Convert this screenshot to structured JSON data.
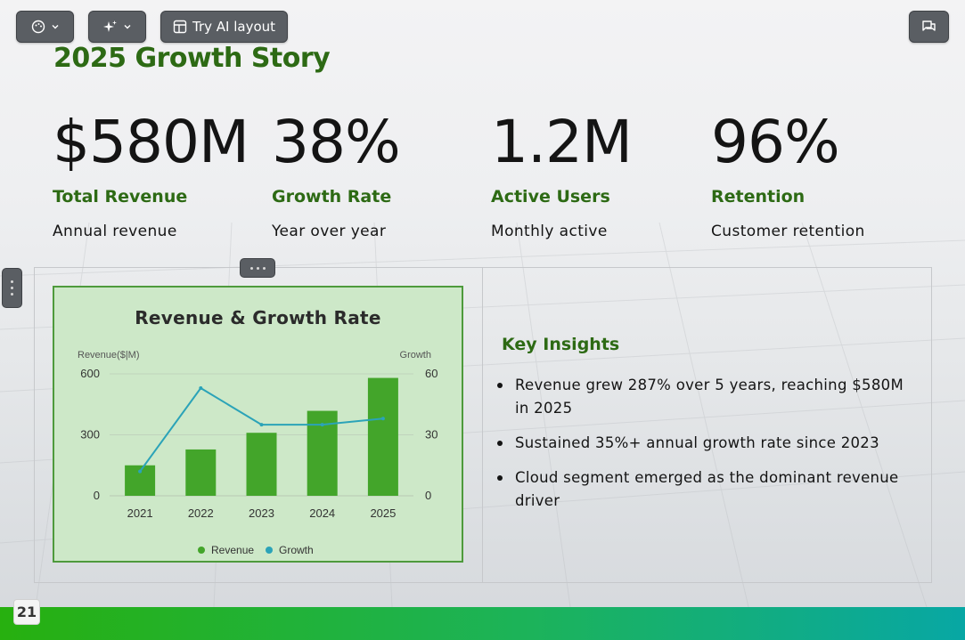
{
  "toolbar": {
    "theme_icon": "palette-icon",
    "ai_icon": "sparkles-icon",
    "try_ai_label": "Try AI layout",
    "comment_icon": "comment-icon"
  },
  "slide": {
    "title": "2025 Growth Story",
    "stats": [
      {
        "value": "$580M",
        "label": "Total Revenue",
        "sub": "Annual revenue"
      },
      {
        "value": "38%",
        "label": "Growth Rate",
        "sub": "Year over year"
      },
      {
        "value": "1.2M",
        "label": "Active Users",
        "sub": "Monthly active"
      },
      {
        "value": "96%",
        "label": "Retention",
        "sub": "Customer retention"
      }
    ],
    "insights_title": "Key Insights",
    "insights": [
      "Revenue grew 287% over 5 years, reaching $580M in 2025",
      "Sustained 35%+ annual growth rate since 2023",
      "Cloud segment emerged as the dominant revenue driver"
    ],
    "page_number": "21"
  },
  "colors": {
    "accent": "#2d6a14",
    "bar": "#43a52a",
    "line": "#2ba3b8",
    "chart_bg": "#cde8c8"
  },
  "chart_data": {
    "type": "bar",
    "title": "Revenue & Growth Rate",
    "categories": [
      "2021",
      "2022",
      "2023",
      "2024",
      "2025"
    ],
    "series": [
      {
        "name": "Revenue",
        "type": "bar",
        "axis": "left",
        "values": [
          150,
          228,
          310,
          418,
          580
        ]
      },
      {
        "name": "Growth",
        "type": "line",
        "axis": "right",
        "values": [
          12,
          53,
          35,
          35,
          38
        ]
      }
    ],
    "ylabel": "Revenue($|M)",
    "y2label": "Growth",
    "ylim": [
      0,
      600
    ],
    "y2lim": [
      0,
      60
    ],
    "yticks": [
      "0",
      "300",
      "600"
    ],
    "y2ticks": [
      "0",
      "30",
      "60"
    ],
    "grid": true,
    "legend": "bottom"
  }
}
